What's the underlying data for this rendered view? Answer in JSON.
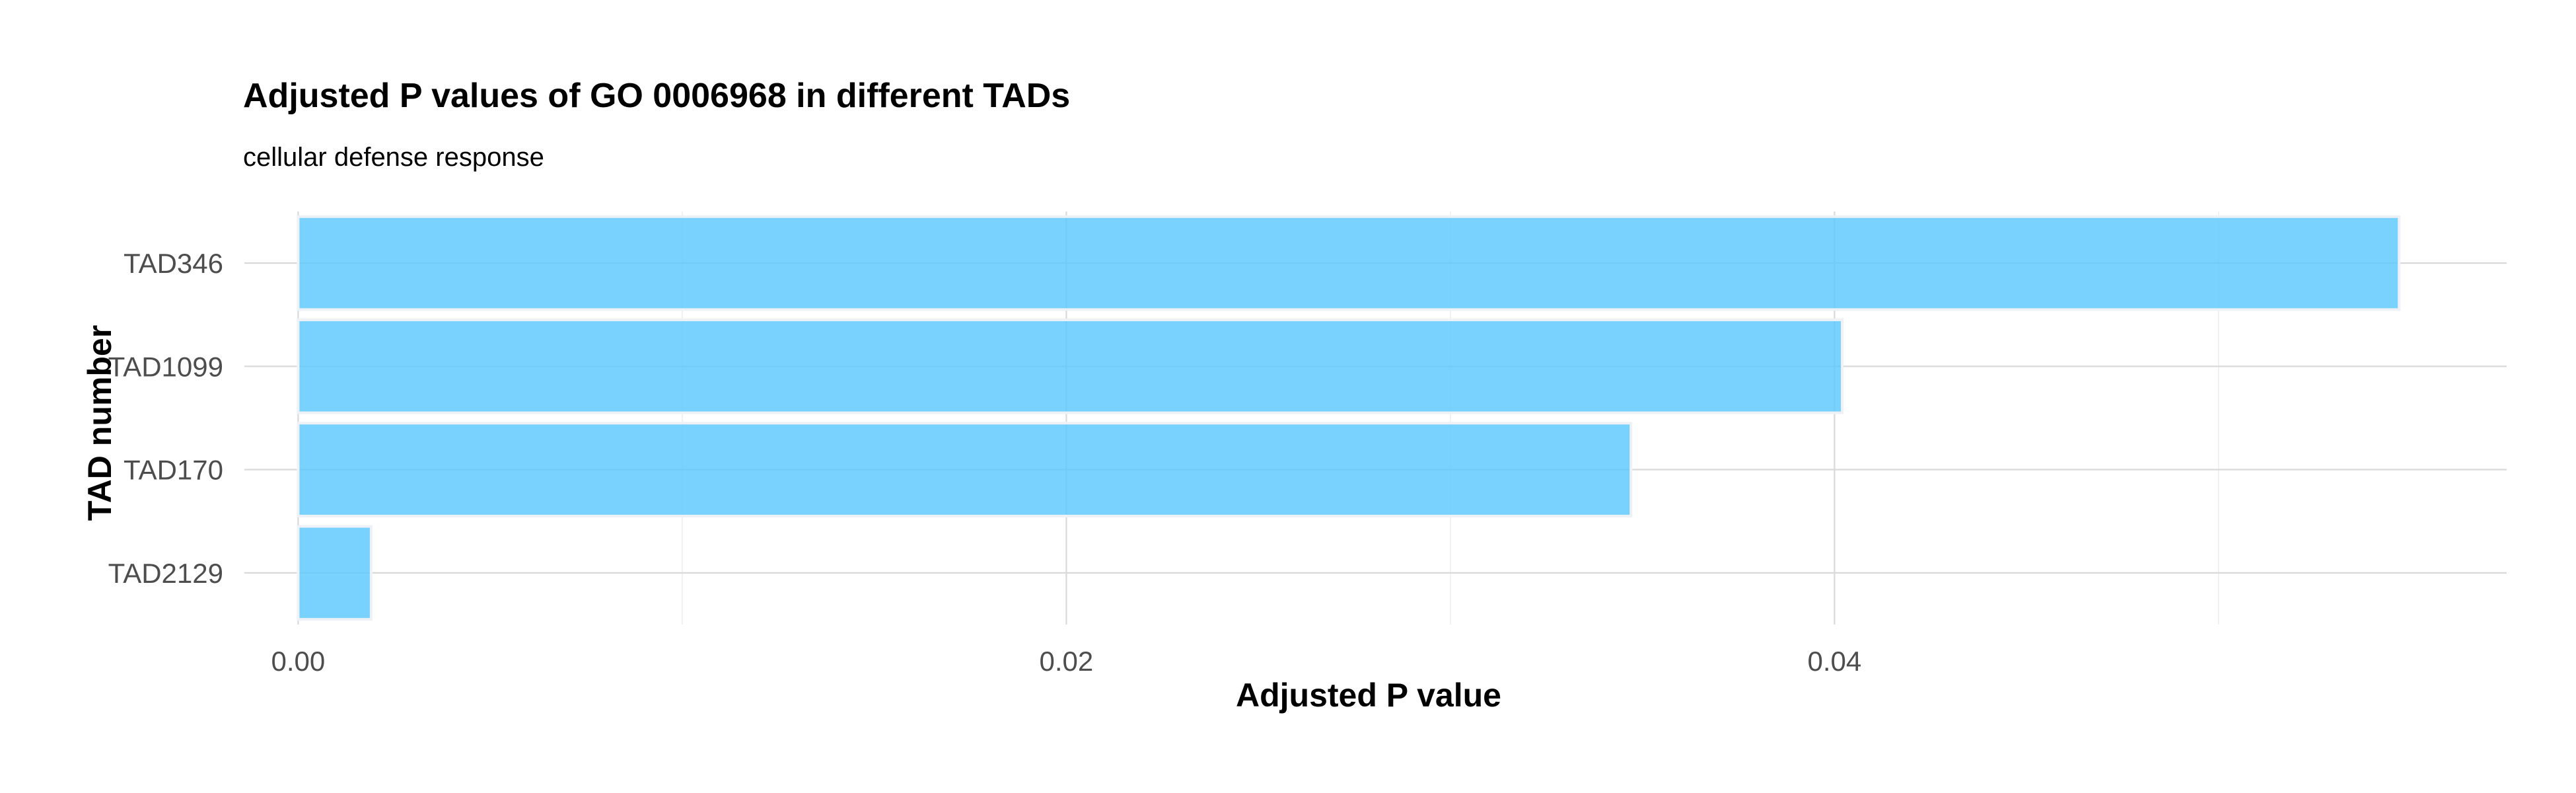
{
  "chart_data": {
    "type": "bar",
    "orientation": "horizontal",
    "title": "Adjusted P values of GO 0006968 in different TADs",
    "subtitle": "cellular defense response",
    "xlabel": "Adjusted P value",
    "ylabel": "TAD number",
    "categories": [
      "TAD346",
      "TAD1099",
      "TAD170",
      "TAD2129"
    ],
    "values": [
      0.0547,
      0.0402,
      0.0347,
      0.0019
    ],
    "xlim": [
      -0.0014,
      0.0575
    ],
    "x_ticks": [
      0.0,
      0.02,
      0.04
    ],
    "x_tick_labels": [
      "0.00",
      "0.02",
      "0.04"
    ],
    "bar_color": "#5bc8fc",
    "grid": true
  }
}
